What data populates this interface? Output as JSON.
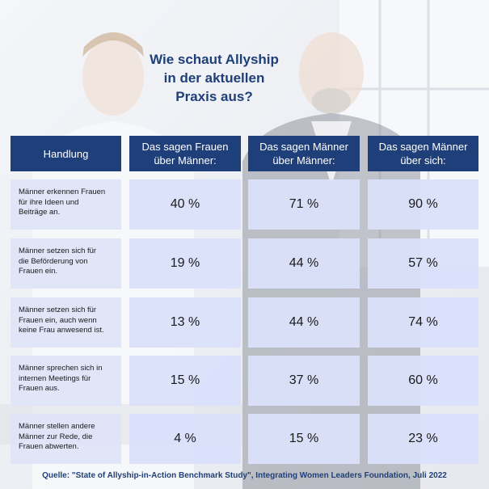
{
  "title": "Wie schaut Allyship\nin der aktuellen\nPraxis aus?",
  "source": "Quelle: \"State of Allyship-in-Action Benchmark Study\", Integrating Women Leaders Foundation, Juli 2022",
  "colors": {
    "header_bg": "#1f3f7a",
    "title_text": "#1f3f78",
    "cell_bg": "#dfe4f8"
  },
  "chart_data": {
    "type": "table",
    "columns": [
      "Handlung",
      "Das sagen Frauen\nüber Männer:",
      "Das sagen Männer\nüber Männer:",
      "Das sagen Männer\nüber sich:"
    ],
    "rows": [
      {
        "label": "Männer erkennen Frauen\nfür ihre Ideen und\nBeiträge an.",
        "values": [
          "40 %",
          "71 %",
          "90 %"
        ]
      },
      {
        "label": "Männer setzen sich für\ndie Beförderung von\nFrauen ein.",
        "values": [
          "19 %",
          "44 %",
          "57 %"
        ]
      },
      {
        "label": "Männer setzen sich für\nFrauen ein, auch wenn\nkeine Frau anwesend ist.",
        "values": [
          "13 %",
          "44 %",
          "74 %"
        ]
      },
      {
        "label": "Männer sprechen sich in\ninternen Meetings für\nFrauen aus.",
        "values": [
          "15 %",
          "37 %",
          "60 %"
        ]
      },
      {
        "label": "Männer stellen andere\nMänner zur Rede, die\nFrauen abwerten.",
        "values": [
          "4 %",
          "15 %",
          "23 %"
        ]
      }
    ]
  }
}
